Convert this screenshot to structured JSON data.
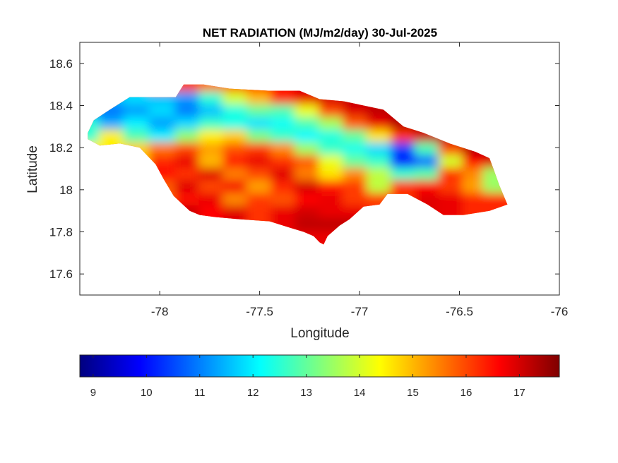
{
  "chart_data": {
    "type": "heatmap",
    "title": "NET RADIATION (MJ/m2/day) 30-Jul-2025",
    "xlabel": "Longitude",
    "ylabel": "Latitude",
    "xlim": [
      -78.4,
      -76.0
    ],
    "ylim": [
      17.5,
      18.7
    ],
    "xticks": [
      -78,
      -77.5,
      -77,
      -76.5,
      -76
    ],
    "xtick_labels": [
      "-78",
      "-77.5",
      "-77",
      "-76.5",
      "-76"
    ],
    "yticks": [
      17.6,
      17.8,
      18,
      18.2,
      18.4,
      18.6
    ],
    "ytick_labels": [
      "17.6",
      "17.8",
      "18",
      "18.2",
      "18.4",
      "18.6"
    ],
    "grid": false,
    "colormap": "jet",
    "colorbar": {
      "orientation": "horizontal",
      "location": "below",
      "range": [
        8.75,
        17.75
      ],
      "ticks": [
        9,
        10,
        11,
        12,
        13,
        14,
        15,
        16,
        17
      ],
      "tick_labels": [
        "9",
        "10",
        "11",
        "12",
        "13",
        "14",
        "15",
        "16",
        "17"
      ]
    },
    "colormap_stops": [
      "#00007f",
      "#0000ff",
      "#007fff",
      "#00ffff",
      "#7fff7f",
      "#ffff00",
      "#ff7f00",
      "#ff0000",
      "#7f0000"
    ],
    "region_outline": [
      [
        -78.36,
        18.27
      ],
      [
        -78.33,
        18.33
      ],
      [
        -78.25,
        18.38
      ],
      [
        -78.15,
        18.44
      ],
      [
        -78.0,
        18.44
      ],
      [
        -77.92,
        18.44
      ],
      [
        -77.88,
        18.5
      ],
      [
        -77.78,
        18.5
      ],
      [
        -77.65,
        18.48
      ],
      [
        -77.45,
        18.47
      ],
      [
        -77.3,
        18.47
      ],
      [
        -77.2,
        18.43
      ],
      [
        -77.08,
        18.42
      ],
      [
        -76.98,
        18.4
      ],
      [
        -76.88,
        18.38
      ],
      [
        -76.78,
        18.3
      ],
      [
        -76.68,
        18.27
      ],
      [
        -76.55,
        18.22
      ],
      [
        -76.42,
        18.18
      ],
      [
        -76.35,
        18.15
      ],
      [
        -76.33,
        18.1
      ],
      [
        -76.3,
        18.02
      ],
      [
        -76.26,
        17.93
      ],
      [
        -76.35,
        17.9
      ],
      [
        -76.48,
        17.88
      ],
      [
        -76.58,
        17.88
      ],
      [
        -76.66,
        17.93
      ],
      [
        -76.76,
        17.98
      ],
      [
        -76.86,
        17.98
      ],
      [
        -76.9,
        17.93
      ],
      [
        -76.98,
        17.92
      ],
      [
        -77.05,
        17.86
      ],
      [
        -77.1,
        17.83
      ],
      [
        -77.16,
        17.78
      ],
      [
        -77.18,
        17.74
      ],
      [
        -77.2,
        17.75
      ],
      [
        -77.23,
        17.78
      ],
      [
        -77.28,
        17.8
      ],
      [
        -77.35,
        17.82
      ],
      [
        -77.45,
        17.85
      ],
      [
        -77.6,
        17.86
      ],
      [
        -77.72,
        17.87
      ],
      [
        -77.8,
        17.88
      ],
      [
        -77.85,
        17.9
      ],
      [
        -77.93,
        17.97
      ],
      [
        -77.98,
        18.05
      ],
      [
        -78.02,
        18.12
      ],
      [
        -78.1,
        18.2
      ],
      [
        -78.2,
        18.22
      ],
      [
        -78.3,
        18.21
      ],
      [
        -78.36,
        18.24
      ]
    ],
    "values": {
      "lon": [
        -78.34,
        -78.2,
        -78.08,
        -77.95,
        -77.82,
        -77.7,
        -77.58,
        -77.46,
        -77.34,
        -77.22,
        -77.1,
        -76.98,
        -76.86,
        -76.74,
        -76.62,
        -76.5,
        -76.38,
        -76.28
      ],
      "lat": [
        18.48,
        18.42,
        18.36,
        18.3,
        18.24,
        18.18,
        18.12,
        18.06,
        18.0,
        17.94,
        17.88,
        17.82,
        17.76
      ],
      "grid": [
        [
          null,
          null,
          null,
          null,
          16.0,
          15.5,
          15.8,
          16.2,
          16.6,
          17.0,
          null,
          null,
          null,
          null,
          null,
          null,
          null,
          null
        ],
        [
          null,
          11.5,
          11.8,
          11.6,
          11.2,
          12.5,
          14.0,
          15.0,
          16.3,
          16.8,
          17.0,
          17.2,
          17.0,
          null,
          null,
          null,
          null,
          null
        ],
        [
          11.2,
          10.9,
          11.3,
          11.8,
          11.0,
          11.6,
          12.4,
          13.0,
          12.8,
          14.2,
          16.0,
          16.9,
          17.2,
          17.3,
          17.1,
          null,
          null,
          null
        ],
        [
          12.5,
          11.4,
          12.0,
          11.3,
          11.8,
          12.6,
          12.3,
          11.9,
          12.2,
          12.8,
          13.6,
          15.8,
          16.8,
          17.3,
          17.4,
          17.2,
          null,
          null
        ],
        [
          null,
          14.5,
          12.8,
          12.0,
          13.4,
          14.5,
          14.8,
          13.2,
          12.6,
          12.1,
          12.4,
          13.0,
          14.6,
          16.2,
          17.0,
          17.4,
          17.0,
          null
        ],
        [
          null,
          null,
          14.8,
          15.6,
          16.0,
          15.2,
          15.9,
          16.1,
          15.4,
          13.5,
          12.6,
          12.3,
          11.8,
          10.5,
          12.8,
          16.0,
          17.3,
          null
        ],
        [
          null,
          null,
          null,
          16.3,
          16.8,
          15.0,
          16.4,
          16.8,
          16.2,
          15.8,
          14.2,
          13.0,
          12.6,
          10.0,
          10.9,
          14.0,
          16.6,
          16.9
        ],
        [
          null,
          null,
          null,
          16.6,
          16.2,
          16.9,
          15.5,
          16.0,
          16.9,
          15.5,
          14.6,
          15.4,
          13.8,
          12.6,
          12.9,
          16.2,
          15.4,
          13.5
        ],
        [
          null,
          null,
          null,
          15.8,
          16.9,
          16.0,
          16.7,
          15.2,
          16.3,
          17.0,
          16.4,
          16.1,
          null,
          16.2,
          16.6,
          16.1,
          15.2,
          null
        ],
        [
          null,
          null,
          null,
          null,
          16.5,
          16.8,
          15.4,
          16.1,
          15.9,
          16.6,
          16.8,
          null,
          null,
          null,
          16.9,
          16.8,
          16.3,
          null
        ],
        [
          null,
          null,
          null,
          null,
          17.1,
          16.6,
          16.9,
          16.2,
          16.8,
          17.0,
          null,
          null,
          null,
          null,
          null,
          null,
          null,
          null
        ],
        [
          null,
          null,
          null,
          null,
          null,
          null,
          null,
          null,
          null,
          17.2,
          null,
          null,
          null,
          null,
          null,
          null,
          null,
          null
        ],
        [
          null,
          null,
          null,
          null,
          null,
          null,
          null,
          null,
          null,
          16.8,
          null,
          null,
          null,
          null,
          null,
          null,
          null,
          null
        ]
      ]
    }
  }
}
